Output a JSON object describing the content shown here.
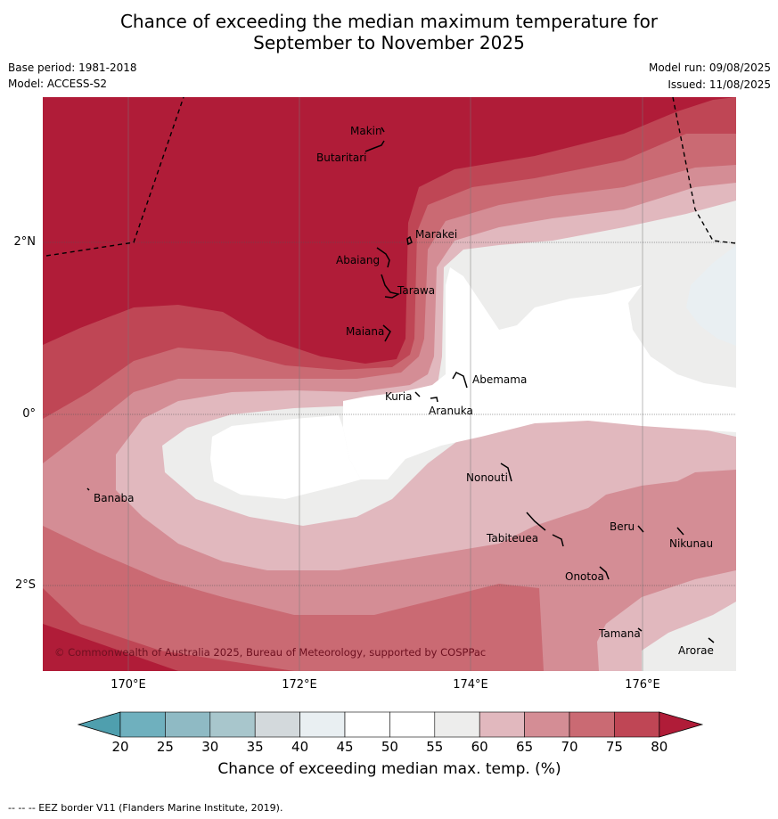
{
  "title_line1": "Chance of exceeding the median maximum temperature for",
  "title_line2": "September to November 2025",
  "base_period": "Base period: 1981-2018",
  "model": "Model: ACCESS-S2",
  "model_run": "Model run: 09/08/2025",
  "issued": "Issued: 11/08/2025",
  "copyright": "© Commonwealth of Australia 2025, Bureau of Meteorology, supported by COSPPac",
  "lat_labels": [
    "2°N",
    "0°",
    "2°S"
  ],
  "lon_labels": [
    "170°E",
    "172°E",
    "174°E",
    "176°E"
  ],
  "places": [
    "Makin",
    "Butaritari",
    "Marakei",
    "Abaiang",
    "Tarawa",
    "Maiana",
    "Abemama",
    "Kuria",
    "Aranuka",
    "Nonouti",
    "Banaba",
    "Tabiteuea",
    "Beru",
    "Nikunau",
    "Onotoa",
    "Tamana",
    "Arorae"
  ],
  "colorbar": {
    "label": "Chance of exceeding median max. temp. (%)",
    "ticks": [
      "20",
      "25",
      "30",
      "35",
      "40",
      "45",
      "50",
      "55",
      "60",
      "65",
      "70",
      "75",
      "80"
    ],
    "colors": [
      "#4f9fae",
      "#6fb0be",
      "#8fbac4",
      "#a8c6cc",
      "#d3d9dc",
      "#e9eff2",
      "#ffffff",
      "#ffffff",
      "#ededec",
      "#e1b8be",
      "#d48d95",
      "#ca6a73",
      "#bf4655",
      "#b01c38"
    ]
  },
  "footer": "--  --  -- EEZ border V11 (Flanders Marine Institute, 2019).",
  "colors": {
    "c80": "#b01c38",
    "c75": "#bf4655",
    "c70": "#ca6a73",
    "c65": "#d48d95",
    "c60": "#e1b8be",
    "c55": "#ededec",
    "c50": "#ffffff",
    "c40": "#e9eff2"
  }
}
